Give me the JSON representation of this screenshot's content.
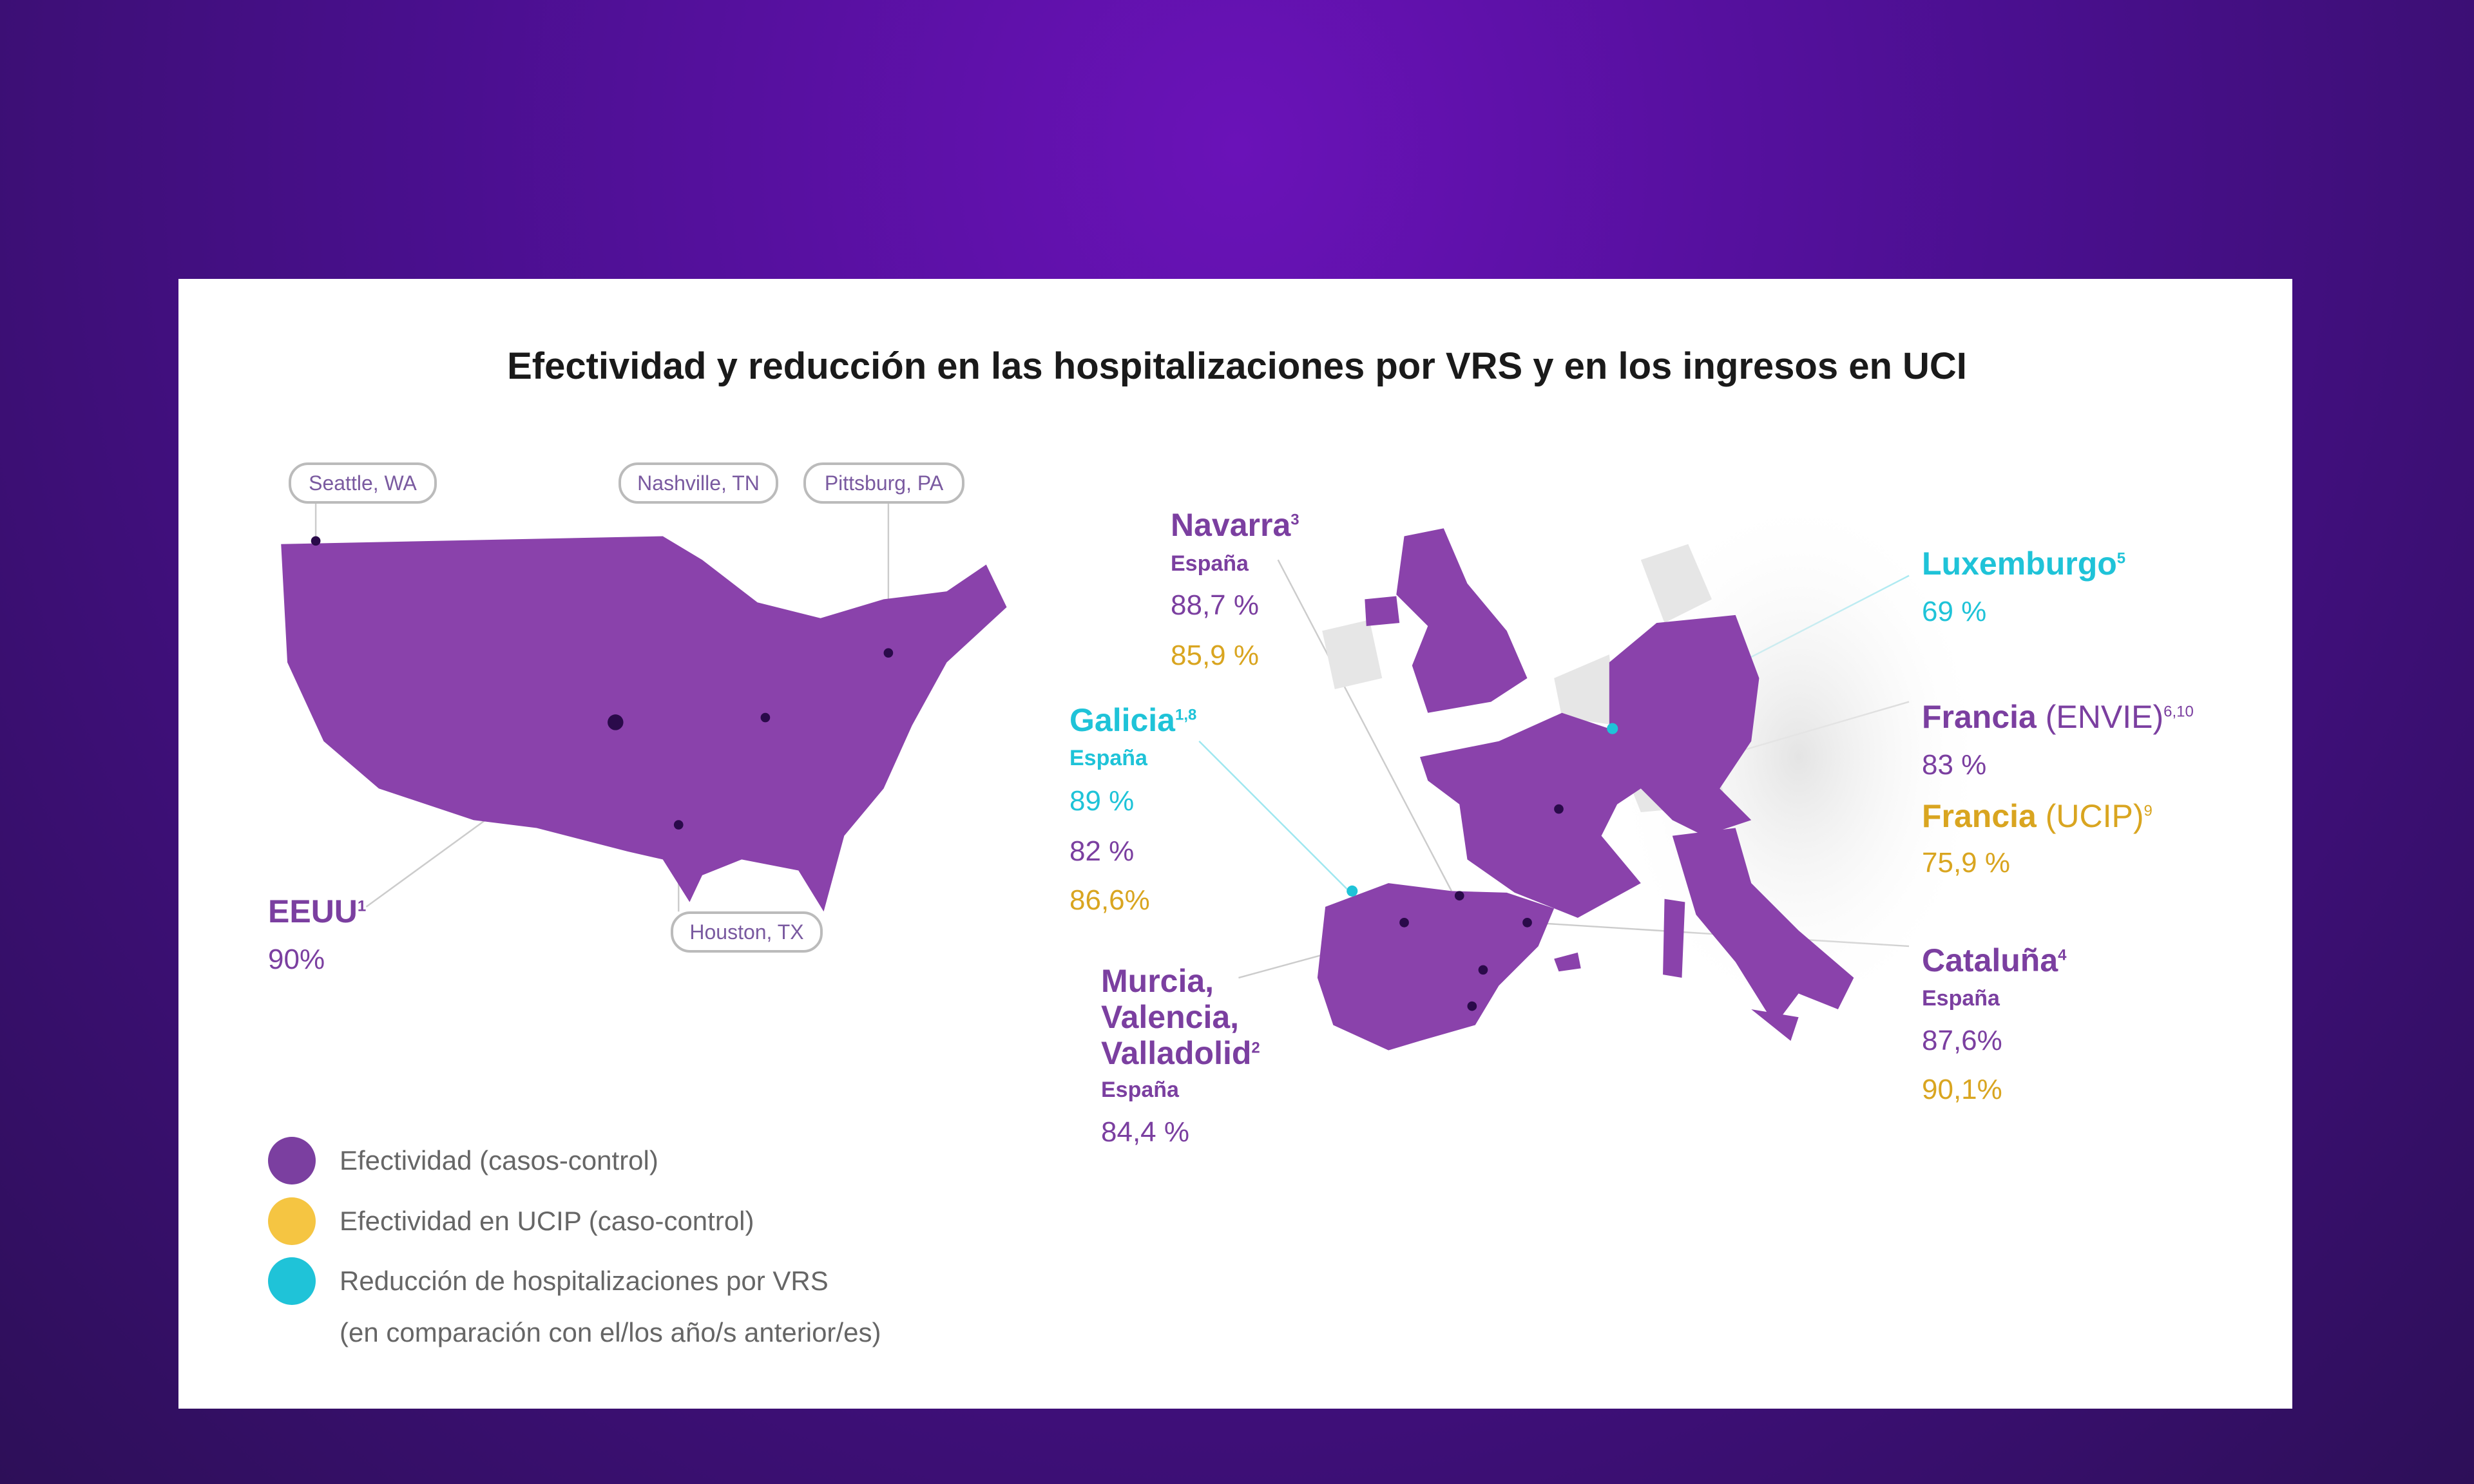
{
  "title": "Efectividad y reducción en las hospitalizaciones por VRS y en los ingresos en UCI",
  "colors": {
    "effectiveness": "#7b3fa0",
    "picu": "#f5c542",
    "reduction": "#1fc3d8",
    "map": "#8a42ab"
  },
  "usa": {
    "cities": [
      "Seattle, WA",
      "Nashville, TN",
      "Pittsburg, PA",
      "Houston, TX"
    ],
    "name": "EEUU",
    "sup": "1",
    "value": "90%"
  },
  "europe": {
    "navarra": {
      "name": "Navarra",
      "sup": "3",
      "country": "España",
      "values": [
        "88,7 %",
        "85,9 %"
      ]
    },
    "galicia": {
      "name": "Galicia",
      "sup": "1,8",
      "country": "España",
      "values": [
        "89 %",
        "82 %",
        "86,6%"
      ]
    },
    "murcia": {
      "name_lines": [
        "Murcia,",
        "Valencia,",
        "Valladolid"
      ],
      "sup": "2",
      "country": "España",
      "value": "84,4 %"
    },
    "luxemburgo": {
      "name": "Luxemburgo",
      "sup": "5",
      "value": "69 %"
    },
    "francia_envie": {
      "name": "Francia",
      "paren": "(ENVIE)",
      "sup": "6,10",
      "value": "83 %"
    },
    "francia_ucip": {
      "name": "Francia",
      "paren": "(UCIP)",
      "sup": "9",
      "value": "75,9 %"
    },
    "cataluna": {
      "name": "Cataluña",
      "sup": "4",
      "country": "España",
      "values": [
        "87,6%",
        "90,1%"
      ]
    }
  },
  "legend": [
    {
      "label": "Efectividad (casos-control)",
      "color": "#7b3fa0"
    },
    {
      "label": "Efectividad en UCIP (caso-control)",
      "color": "#f5c542"
    },
    {
      "label": "Reducción de hospitalizaciones por VRS",
      "label2": "(en comparación con el/los año/s anterior/es)",
      "color": "#1fc3d8"
    }
  ]
}
